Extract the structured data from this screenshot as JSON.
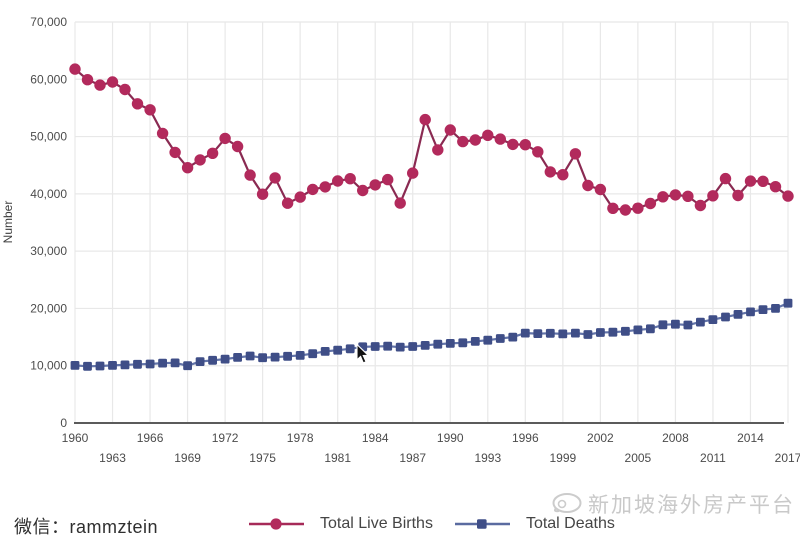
{
  "chart_data": {
    "type": "line",
    "title": "",
    "ylabel": "Number",
    "xlabel": "",
    "grid": true,
    "legend_position": "bottom",
    "xlim": [
      1960,
      2017
    ],
    "ylim": [
      0,
      70000
    ],
    "y_ticks": [
      0,
      10000,
      20000,
      30000,
      40000,
      50000,
      60000,
      70000
    ],
    "x_tick_labels": [
      "1960",
      "1963",
      "1966",
      "1969",
      "1972",
      "1975",
      "1978",
      "1981",
      "1984",
      "1987",
      "1990",
      "1993",
      "1996",
      "1999",
      "2002",
      "2005",
      "2008",
      "2011",
      "2014",
      "2017"
    ],
    "x": [
      1960,
      1961,
      1962,
      1963,
      1964,
      1965,
      1966,
      1967,
      1968,
      1969,
      1970,
      1971,
      1972,
      1973,
      1974,
      1975,
      1976,
      1977,
      1978,
      1979,
      1980,
      1981,
      1982,
      1983,
      1984,
      1985,
      1986,
      1987,
      1988,
      1989,
      1990,
      1991,
      1992,
      1993,
      1994,
      1995,
      1996,
      1997,
      1998,
      1999,
      2000,
      2001,
      2002,
      2003,
      2004,
      2005,
      2006,
      2007,
      2008,
      2009,
      2010,
      2011,
      2012,
      2013,
      2014,
      2015,
      2016,
      2017
    ],
    "series": [
      {
        "name": "Total Live Births",
        "marker": "circle",
        "color": "#b22a5c",
        "line_color": "#8a2a52",
        "values": [
          61775,
          59930,
          58977,
          59530,
          58217,
          55725,
          54680,
          50560,
          47241,
          44562,
          45934,
          47088,
          49678,
          48269,
          43268,
          39948,
          42783,
          38364,
          39441,
          40779,
          41217,
          42250,
          42654,
          40585,
          41556,
          42484,
          38379,
          43616,
          52957,
          47669,
          51142,
          49114,
          49402,
          50225,
          49554,
          48635,
          48577,
          47333,
          43838,
          43336,
          46997,
          41451,
          40760,
          37485,
          37174,
          37492,
          38317,
          39490,
          39826,
          39570,
          37967,
          39654,
          42663,
          39720,
          42232,
          42185,
          41251,
          39615
        ]
      },
      {
        "name": "Total Deaths",
        "marker": "square",
        "color": "#3f4e87",
        "line_color": "#6273a8",
        "values": [
          10052,
          9900,
          9950,
          10050,
          10150,
          10250,
          10300,
          10450,
          10500,
          10000,
          10717,
          10950,
          11150,
          11450,
          11700,
          11400,
          11500,
          11650,
          11800,
          12100,
          12505,
          12700,
          12950,
          13300,
          13350,
          13400,
          13250,
          13350,
          13550,
          13750,
          13891,
          14000,
          14250,
          14450,
          14750,
          15000,
          15700,
          15600,
          15650,
          15550,
          15693,
          15450,
          15800,
          15850,
          16000,
          16250,
          16450,
          17150,
          17250,
          17100,
          17610,
          18050,
          18500,
          18950,
          19400,
          19800,
          20000,
          20905
        ]
      }
    ],
    "colors": {
      "grid": "#e8e8e8",
      "axis": "#5b5b5b",
      "tick_text": "#4c4c4c"
    }
  },
  "footer": {
    "wechat_label": "微信：rammztein"
  },
  "watermark": {
    "text": "新加坡海外房产平台",
    "logo_icon": "bubble-logo-icon"
  },
  "icons": {
    "cursor": "mouse-pointer-icon"
  }
}
